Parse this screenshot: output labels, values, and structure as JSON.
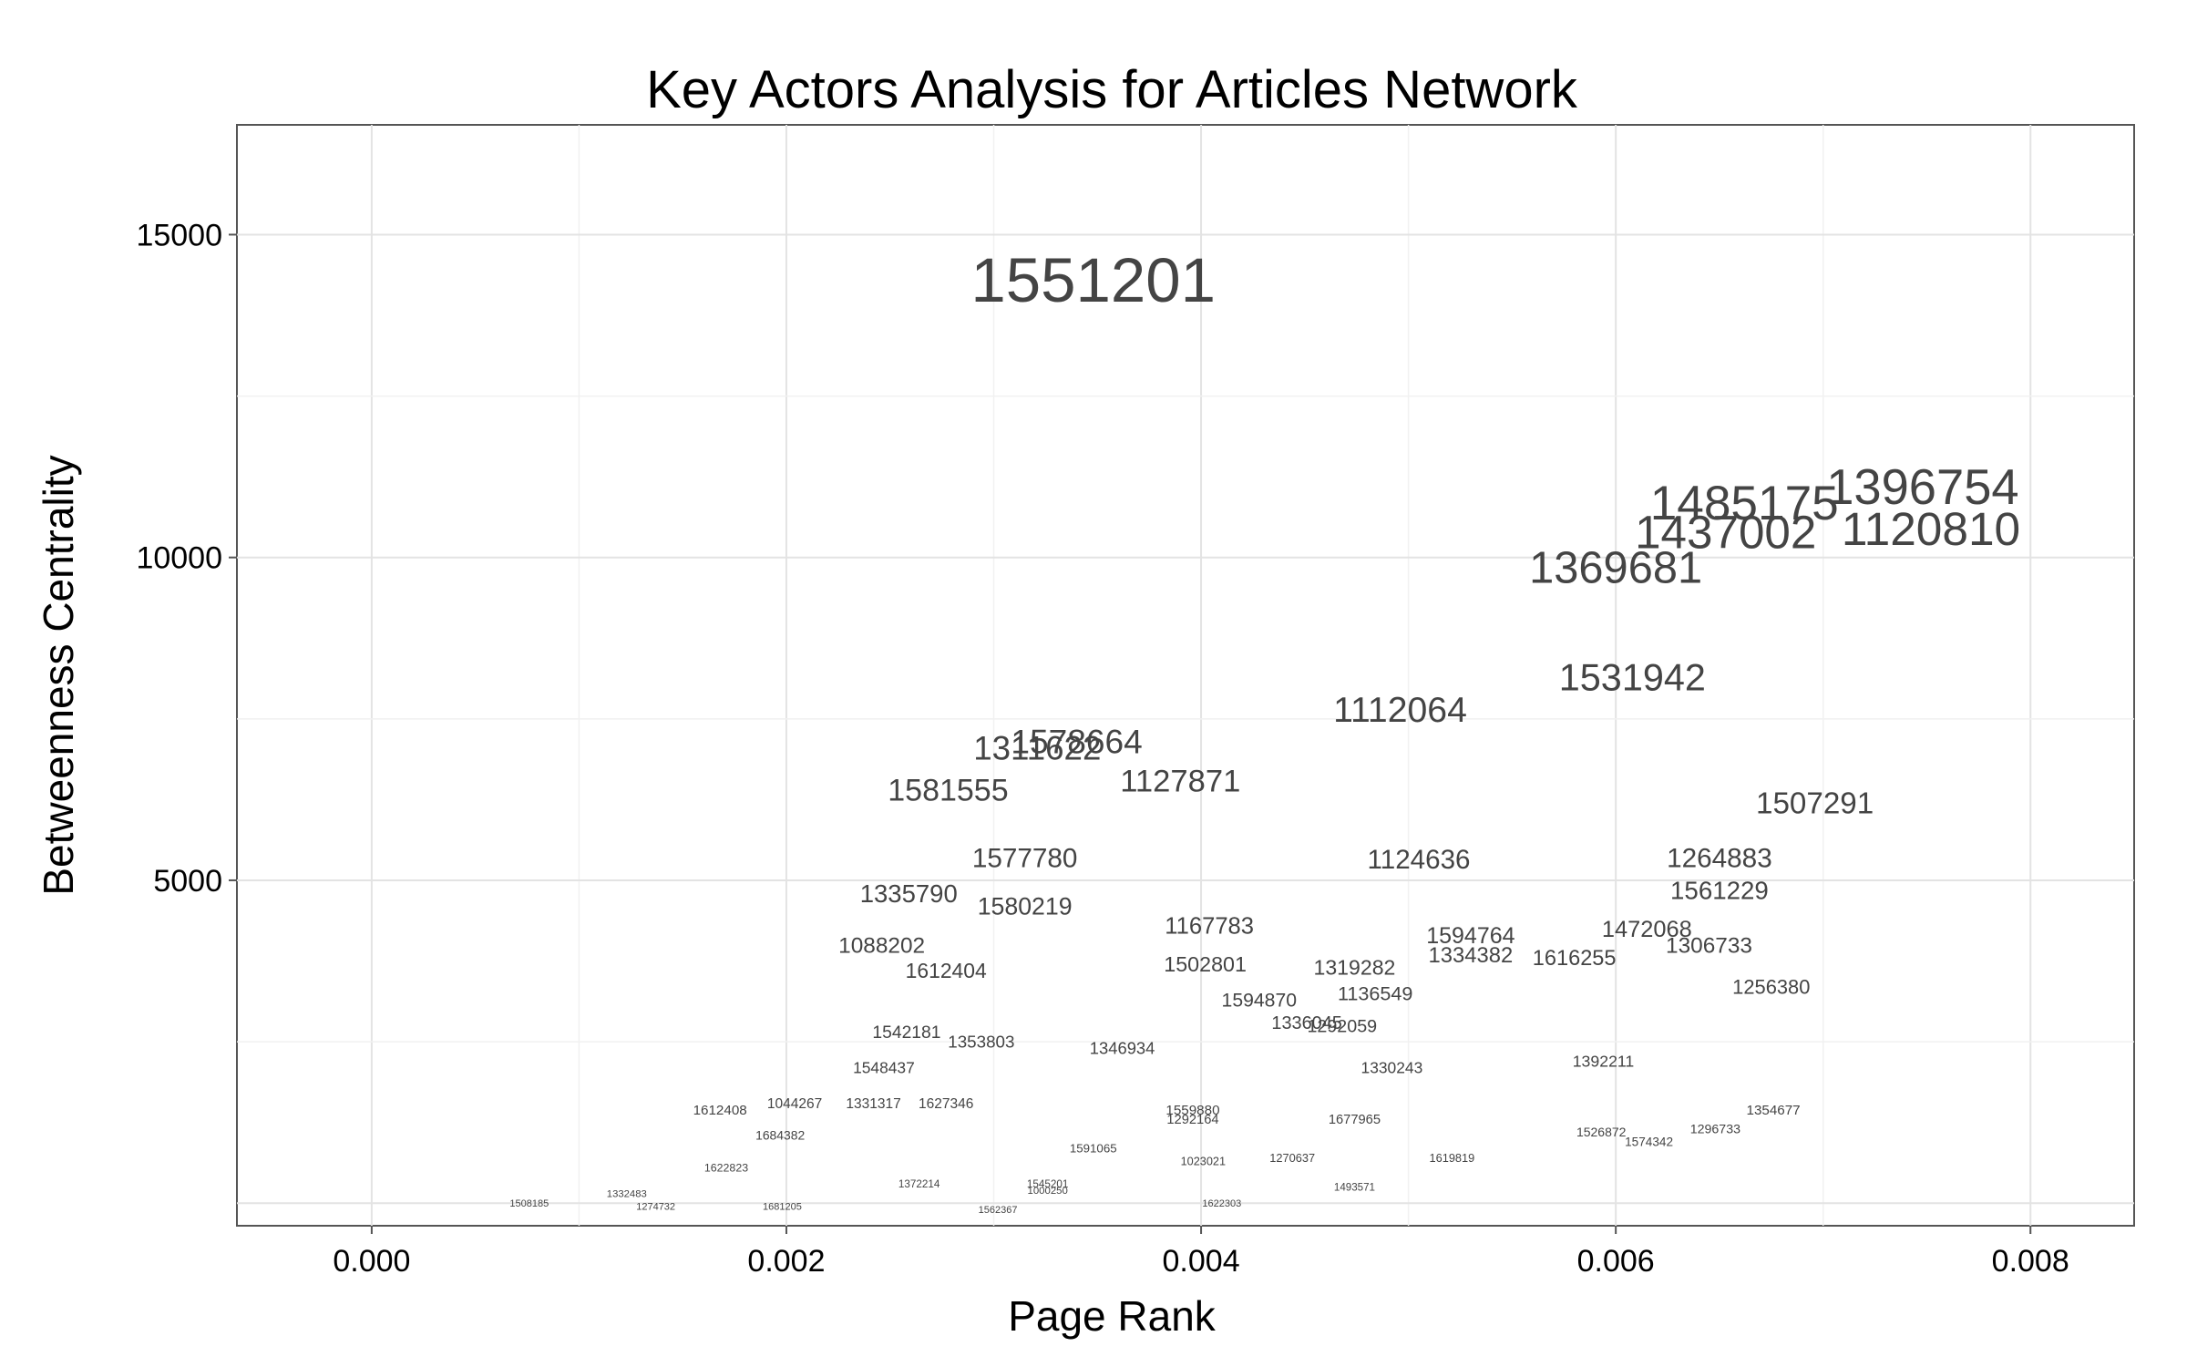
{
  "chart_data": {
    "type": "scatter",
    "title": "Key Actors Analysis for Articles Network",
    "xlabel": "Page Rank",
    "ylabel": "Betweenness Centrality",
    "xlim": [
      -0.00065,
      0.0085
    ],
    "ylim": [
      -350,
      16700
    ],
    "xticks": [
      0.0,
      0.002,
      0.004,
      0.006,
      0.008
    ],
    "xtick_labels": [
      "0.000",
      "0.002",
      "0.004",
      "0.006",
      "0.008"
    ],
    "yticks": [
      5000,
      10000,
      15000
    ],
    "ytick_labels": [
      "5000",
      "10000",
      "15000"
    ],
    "grid": true,
    "marker": "text-label sized by betweenness",
    "points": [
      {
        "label": "1551201",
        "x": 0.00348,
        "y": 14300
      },
      {
        "label": "1396754",
        "x": 0.00748,
        "y": 11100
      },
      {
        "label": "1485175",
        "x": 0.00662,
        "y": 10850
      },
      {
        "label": "1120810",
        "x": 0.00752,
        "y": 10450
      },
      {
        "label": "1437002",
        "x": 0.00653,
        "y": 10400
      },
      {
        "label": "1369681",
        "x": 0.006,
        "y": 9850
      },
      {
        "label": "1531942",
        "x": 0.00608,
        "y": 8150
      },
      {
        "label": "1112064",
        "x": 0.00496,
        "y": 7650
      },
      {
        "label": "1311622",
        "x": 0.00321,
        "y": 7050
      },
      {
        "label": "1578664",
        "x": 0.0034,
        "y": 7150
      },
      {
        "label": "1581555",
        "x": 0.00278,
        "y": 6400
      },
      {
        "label": "1127871",
        "x": 0.0039,
        "y": 6550
      },
      {
        "label": "1507291",
        "x": 0.00696,
        "y": 6200
      },
      {
        "label": "1577780",
        "x": 0.00315,
        "y": 5350
      },
      {
        "label": "1264883",
        "x": 0.0065,
        "y": 5350
      },
      {
        "label": "1124636",
        "x": 0.00505,
        "y": 5330
      },
      {
        "label": "1335790",
        "x": 0.00259,
        "y": 4800
      },
      {
        "label": "1580219",
        "x": 0.00315,
        "y": 4600
      },
      {
        "label": "1561229",
        "x": 0.0065,
        "y": 4850
      },
      {
        "label": "1167783",
        "x": 0.00404,
        "y": 4300
      },
      {
        "label": "1472068",
        "x": 0.00615,
        "y": 4250
      },
      {
        "label": "1594764",
        "x": 0.0053,
        "y": 4150
      },
      {
        "label": "1088202",
        "x": 0.00246,
        "y": 4000
      },
      {
        "label": "1306733",
        "x": 0.00645,
        "y": 4000
      },
      {
        "label": "1334382",
        "x": 0.0053,
        "y": 3850
      },
      {
        "label": "1616255",
        "x": 0.0058,
        "y": 3800
      },
      {
        "label": "1502801",
        "x": 0.00402,
        "y": 3700
      },
      {
        "label": "1612404",
        "x": 0.00277,
        "y": 3600
      },
      {
        "label": "1319282",
        "x": 0.00474,
        "y": 3650
      },
      {
        "label": "1256380",
        "x": 0.00675,
        "y": 3350
      },
      {
        "label": "1136549",
        "x": 0.00484,
        "y": 3250
      },
      {
        "label": "1594870",
        "x": 0.00428,
        "y": 3150
      },
      {
        "label": "1336045",
        "x": 0.00451,
        "y": 2800
      },
      {
        "label": "1292059",
        "x": 0.00468,
        "y": 2750
      },
      {
        "label": "1542181",
        "x": 0.00258,
        "y": 2650
      },
      {
        "label": "1353803",
        "x": 0.00294,
        "y": 2500
      },
      {
        "label": "1346934",
        "x": 0.00362,
        "y": 2400
      },
      {
        "label": "1392211",
        "x": 0.00594,
        "y": 2200
      },
      {
        "label": "1330243",
        "x": 0.00492,
        "y": 2100
      },
      {
        "label": "1548437",
        "x": 0.00247,
        "y": 2100
      },
      {
        "label": "1612408",
        "x": 0.00168,
        "y": 1450
      },
      {
        "label": "1044267",
        "x": 0.00204,
        "y": 1550
      },
      {
        "label": "1331317",
        "x": 0.00242,
        "y": 1550
      },
      {
        "label": "1627346",
        "x": 0.00277,
        "y": 1550
      },
      {
        "label": "1354677",
        "x": 0.00676,
        "y": 1450
      },
      {
        "label": "1559880",
        "x": 0.00396,
        "y": 1450
      },
      {
        "label": "1677965",
        "x": 0.00474,
        "y": 1300
      },
      {
        "label": "1292164",
        "x": 0.00396,
        "y": 1300
      },
      {
        "label": "1526872",
        "x": 0.00593,
        "y": 1100
      },
      {
        "label": "1296733",
        "x": 0.00648,
        "y": 1150
      },
      {
        "label": "1574342",
        "x": 0.00616,
        "y": 950
      },
      {
        "label": "1684382",
        "x": 0.00197,
        "y": 1050
      },
      {
        "label": "1270637",
        "x": 0.00444,
        "y": 700
      },
      {
        "label": "1023021",
        "x": 0.00401,
        "y": 650
      },
      {
        "label": "1619819",
        "x": 0.00521,
        "y": 700
      },
      {
        "label": "1622823",
        "x": 0.00171,
        "y": 550
      },
      {
        "label": "1591065",
        "x": 0.00348,
        "y": 850
      },
      {
        "label": "1372214",
        "x": 0.00264,
        "y": 300
      },
      {
        "label": "1545201",
        "x": 0.00326,
        "y": 300
      },
      {
        "label": "1000250",
        "x": 0.00326,
        "y": 200
      },
      {
        "label": "1493571",
        "x": 0.00474,
        "y": 250
      },
      {
        "label": "1622303",
        "x": 0.0041,
        "y": 0
      },
      {
        "label": "1681205",
        "x": 0.00198,
        "y": -50
      },
      {
        "label": "1508185",
        "x": 0.00076,
        "y": 0
      },
      {
        "label": "1274732",
        "x": 0.00137,
        "y": -50
      },
      {
        "label": "1562367",
        "x": 0.00302,
        "y": -100
      },
      {
        "label": "1332483",
        "x": 0.00123,
        "y": 150
      }
    ]
  }
}
